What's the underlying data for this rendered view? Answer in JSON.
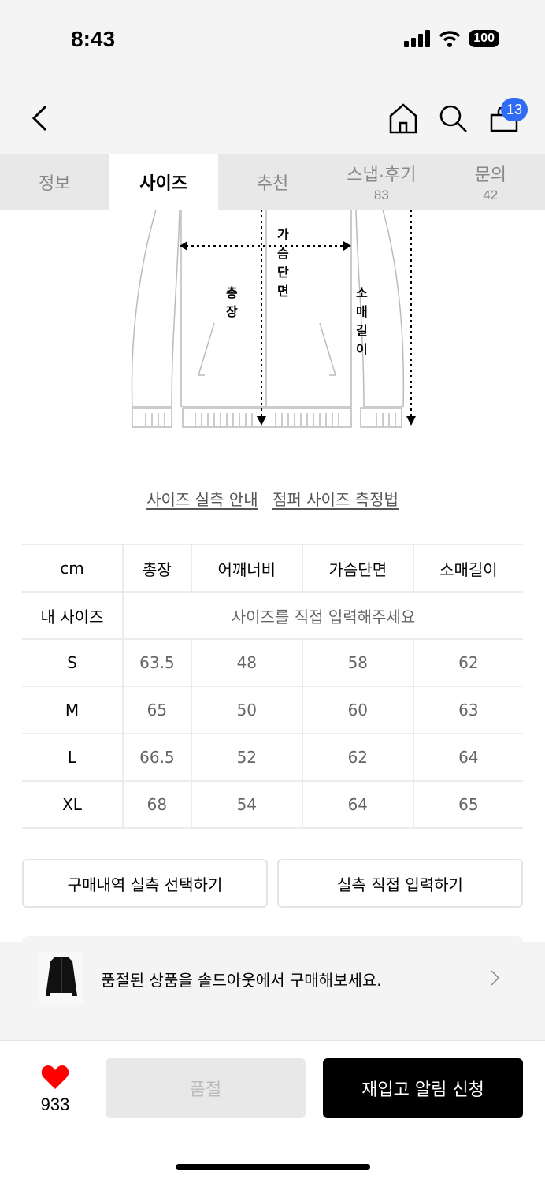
{
  "status_bar": {
    "time": "8:43",
    "battery": "100"
  },
  "header": {
    "cart_count": "13"
  },
  "tabs": [
    {
      "label": "정보"
    },
    {
      "label": "사이즈",
      "active": true
    },
    {
      "label": "추천"
    },
    {
      "label": "스냅·후기",
      "count": "83"
    },
    {
      "label": "문의",
      "count": "42"
    }
  ],
  "diagram": {
    "chest": "가슴단면",
    "length": "총장",
    "sleeve": "소매길이"
  },
  "links": {
    "guide": "사이즈 실측 안내",
    "measure": "점퍼 사이즈 측정법"
  },
  "size_table": {
    "headers": [
      "cm",
      "총장",
      "어깨너비",
      "가슴단면",
      "소매길이"
    ],
    "my_size": {
      "label": "내 사이즈",
      "placeholder": "사이즈를 직접 입력해주세요"
    },
    "rows": [
      [
        "S",
        "63.5",
        "48",
        "58",
        "62"
      ],
      [
        "M",
        "65",
        "50",
        "60",
        "63"
      ],
      [
        "L",
        "66.5",
        "52",
        "62",
        "64"
      ],
      [
        "XL",
        "68",
        "54",
        "64",
        "65"
      ]
    ]
  },
  "buttons": {
    "history": "구매내역 실측 선택하기",
    "direct": "실측 직접 입력하기"
  },
  "banner": {
    "text": "품절된 상품을 솔드아웃에서 구매해보세요."
  },
  "bottom": {
    "likes": "933",
    "soldout": "품절",
    "restock": "재입고 알림 신청"
  },
  "colors": {
    "badge": "#2f6bf5",
    "heart": "#ff0000"
  }
}
